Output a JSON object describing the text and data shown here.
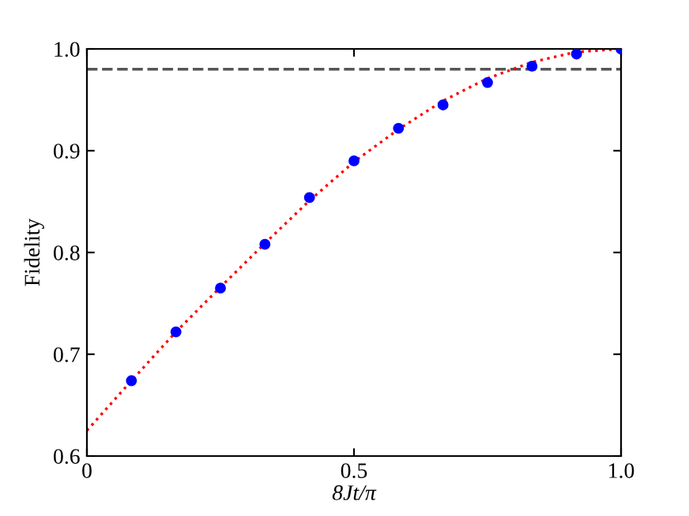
{
  "chart_data": {
    "type": "scatter",
    "xlabel": "8Jt/π",
    "ylabel": "Fidelity",
    "series": [
      {
        "color": "#0000ff",
        "marker": "circle",
        "x": [
          0.0833,
          0.1667,
          0.25,
          0.3333,
          0.4167,
          0.5,
          0.5833,
          0.6667,
          0.75,
          0.8333,
          0.9167,
          1.0
        ],
        "values": [
          0.674,
          0.722,
          0.765,
          0.808,
          0.854,
          0.89,
          0.922,
          0.945,
          0.967,
          0.983,
          0.995,
          1.0
        ]
      },
      {
        "type": "line",
        "color": "#ff0000",
        "line_style": "dotted",
        "x": [
          0,
          0.0833,
          0.1667,
          0.25,
          0.3333,
          0.4167,
          0.5,
          0.5833,
          0.6667,
          0.75,
          0.8333,
          0.9167,
          1.0
        ],
        "values": [
          0.625,
          0.674,
          0.722,
          0.766,
          0.809,
          0.851,
          0.889,
          0.921,
          0.949,
          0.971,
          0.987,
          0.997,
          1.0
        ]
      }
    ],
    "ref_lines": [
      {
        "axis": "y",
        "value": 0.98,
        "color": "#555555",
        "line_style": "dashed"
      }
    ],
    "xlim": [
      0,
      1.0
    ],
    "ylim": [
      0.6,
      1.0
    ],
    "xticks": [
      0,
      {
        "value": 0.5,
        "label": "0.5"
      },
      {
        "value": 1.0,
        "label": "1.0"
      }
    ],
    "yticks": [
      0.6,
      0.7,
      0.8,
      0.9,
      {
        "value": 1.0,
        "label": "1.0"
      }
    ],
    "grid": false,
    "legend": false
  }
}
